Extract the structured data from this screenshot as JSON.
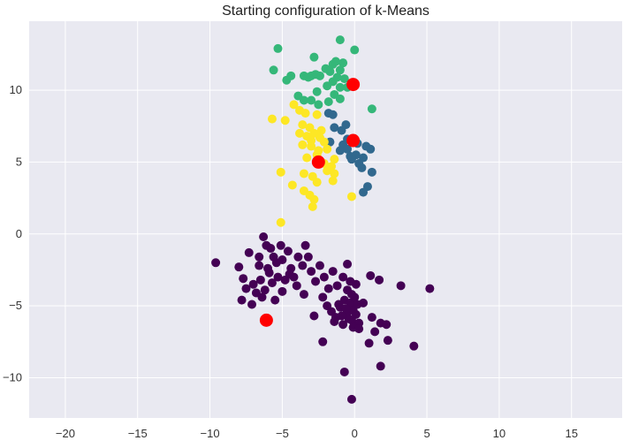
{
  "chart_data": {
    "type": "scatter",
    "title": "Starting configuration of k-Means",
    "xlabel": "",
    "ylabel": "",
    "xlim": [
      -22.5,
      18.5
    ],
    "ylim": [
      -12.8,
      14.8
    ],
    "xticks": [
      -20,
      -15,
      -10,
      -5,
      0,
      5,
      10,
      15
    ],
    "yticks": [
      -10,
      -5,
      0,
      5,
      10
    ],
    "grid": true,
    "background": "#E9E9F1",
    "grid_color": "#FFFFFF",
    "series": [
      {
        "color": "#440154",
        "points": [
          [
            -9.6,
            -2.0
          ],
          [
            -8.0,
            -2.3
          ],
          [
            -7.3,
            -1.3
          ],
          [
            -6.6,
            -1.6
          ],
          [
            -6.6,
            -2.2
          ],
          [
            -6.3,
            -0.2
          ],
          [
            -6.1,
            -0.8
          ],
          [
            -5.8,
            -1.0
          ],
          [
            -5.6,
            -1.6
          ],
          [
            -5.4,
            -2.0
          ],
          [
            -5.1,
            -0.8
          ],
          [
            -5.0,
            -1.8
          ],
          [
            -4.6,
            -1.2
          ],
          [
            -4.4,
            -2.4
          ],
          [
            -4.2,
            -3.0
          ],
          [
            -3.9,
            -1.6
          ],
          [
            -3.6,
            -2.2
          ],
          [
            -3.4,
            -0.8
          ],
          [
            -3.2,
            -1.6
          ],
          [
            -3.0,
            -2.6
          ],
          [
            -7.7,
            -3.1
          ],
          [
            -7.5,
            -3.8
          ],
          [
            -7.0,
            -3.5
          ],
          [
            -6.8,
            -4.1
          ],
          [
            -6.5,
            -3.2
          ],
          [
            -6.2,
            -3.9
          ],
          [
            -5.9,
            -2.7
          ],
          [
            -5.7,
            -3.4
          ],
          [
            -5.3,
            -3.0
          ],
          [
            -5.0,
            -4.0
          ],
          [
            -4.8,
            -3.2
          ],
          [
            -4.5,
            -2.8
          ],
          [
            -7.8,
            -4.6
          ],
          [
            -7.1,
            -4.9
          ],
          [
            -6.4,
            -4.4
          ],
          [
            -5.5,
            -4.6
          ],
          [
            -6.0,
            -2.4
          ],
          [
            -4.0,
            -3.6
          ],
          [
            -3.5,
            -4.2
          ],
          [
            -2.7,
            -3.3
          ],
          [
            -2.4,
            -2.2
          ],
          [
            -2.1,
            -3.0
          ],
          [
            -1.8,
            -3.8
          ],
          [
            -1.5,
            -2.6
          ],
          [
            -1.2,
            -3.6
          ],
          [
            -0.8,
            -3.0
          ],
          [
            -0.5,
            -2.1
          ],
          [
            -0.3,
            -3.3
          ],
          [
            -2.8,
            -5.7
          ],
          [
            -2.2,
            -4.4
          ],
          [
            -1.9,
            -5.0
          ],
          [
            -1.6,
            -5.4
          ],
          [
            -1.3,
            -5.8
          ],
          [
            -1.0,
            -5.1
          ],
          [
            -0.7,
            -4.6
          ],
          [
            -0.5,
            -5.5
          ],
          [
            -0.3,
            -4.8
          ],
          [
            -0.1,
            -5.3
          ],
          [
            0.0,
            -4.4
          ],
          [
            0.1,
            -5.6
          ],
          [
            0.2,
            -4.9
          ],
          [
            0.3,
            -6.2
          ],
          [
            -0.2,
            -6.0
          ],
          [
            -0.4,
            -5.9
          ],
          [
            -0.6,
            -5.2
          ],
          [
            -0.9,
            -5.7
          ],
          [
            -1.1,
            -4.9
          ],
          [
            -1.4,
            -6.1
          ],
          [
            -0.8,
            -6.3
          ],
          [
            -0.1,
            -6.5
          ],
          [
            0.3,
            -6.6
          ],
          [
            -0.2,
            -4.2
          ],
          [
            0.1,
            -3.5
          ],
          [
            -0.5,
            -3.9
          ],
          [
            0.6,
            -4.8
          ],
          [
            1.1,
            -2.9
          ],
          [
            1.7,
            -3.2
          ],
          [
            1.2,
            -5.8
          ],
          [
            1.4,
            -6.8
          ],
          [
            1.0,
            -7.6
          ],
          [
            1.8,
            -6.2
          ],
          [
            2.2,
            -6.3
          ],
          [
            2.3,
            -7.4
          ],
          [
            3.2,
            -3.6
          ],
          [
            4.1,
            -7.8
          ],
          [
            5.2,
            -3.8
          ],
          [
            1.8,
            -9.2
          ],
          [
            -0.7,
            -9.6
          ],
          [
            -2.2,
            -7.5
          ],
          [
            -0.2,
            -11.5
          ]
        ]
      },
      {
        "color": "#31688E",
        "points": [
          [
            -1.8,
            8.4
          ],
          [
            -1.5,
            8.3
          ],
          [
            -1.4,
            7.4
          ],
          [
            -0.9,
            7.2
          ],
          [
            -0.6,
            7.6
          ],
          [
            -0.5,
            6.6
          ],
          [
            -1.7,
            6.4
          ],
          [
            -0.8,
            6.2
          ],
          [
            -1.0,
            5.8
          ],
          [
            -0.5,
            5.9
          ],
          [
            -0.3,
            5.4
          ],
          [
            0.1,
            5.5
          ],
          [
            0.2,
            6.3
          ],
          [
            0.6,
            5.3
          ],
          [
            0.8,
            6.1
          ],
          [
            1.1,
            5.9
          ],
          [
            0.5,
            4.6
          ],
          [
            1.2,
            4.3
          ],
          [
            0.9,
            3.3
          ],
          [
            0.6,
            2.9
          ],
          [
            0.3,
            4.9
          ],
          [
            -0.2,
            5.2
          ]
        ]
      },
      {
        "color": "#35B779",
        "points": [
          [
            -5.3,
            12.9
          ],
          [
            -1.0,
            13.5
          ],
          [
            0.0,
            12.8
          ],
          [
            -5.6,
            11.4
          ],
          [
            -4.7,
            10.7
          ],
          [
            -4.4,
            11.0
          ],
          [
            -3.5,
            11.0
          ],
          [
            -3.0,
            11.0
          ],
          [
            -2.8,
            12.3
          ],
          [
            -2.4,
            11.0
          ],
          [
            -2.0,
            11.5
          ],
          [
            -1.7,
            11.3
          ],
          [
            -1.5,
            11.8
          ],
          [
            -1.3,
            12.0
          ],
          [
            -1.0,
            11.4
          ],
          [
            -0.8,
            11.9
          ],
          [
            -0.7,
            10.8
          ],
          [
            -1.9,
            10.3
          ],
          [
            -1.5,
            10.6
          ],
          [
            -1.2,
            10.9
          ],
          [
            -1.0,
            10.2
          ],
          [
            -0.5,
            10.2
          ],
          [
            -3.9,
            9.6
          ],
          [
            -3.5,
            9.3
          ],
          [
            -3.0,
            9.3
          ],
          [
            -2.6,
            9.9
          ],
          [
            -1.8,
            9.2
          ],
          [
            -1.4,
            9.7
          ],
          [
            -1.0,
            9.4
          ],
          [
            -2.5,
            9.0
          ],
          [
            1.2,
            8.7
          ],
          [
            -2.7,
            11.1
          ],
          [
            -3.2,
            10.9
          ]
        ]
      },
      {
        "color": "#FDE725",
        "points": [
          [
            -5.7,
            8.0
          ],
          [
            -4.8,
            7.9
          ],
          [
            -4.2,
            9.0
          ],
          [
            -3.8,
            8.6
          ],
          [
            -3.4,
            8.4
          ],
          [
            -2.6,
            8.3
          ],
          [
            -3.6,
            7.6
          ],
          [
            -3.1,
            7.4
          ],
          [
            -3.8,
            7.0
          ],
          [
            -3.3,
            6.8
          ],
          [
            -2.8,
            7.0
          ],
          [
            -2.3,
            7.2
          ],
          [
            -2.1,
            6.4
          ],
          [
            -3.6,
            6.2
          ],
          [
            -3.0,
            6.1
          ],
          [
            -2.5,
            5.8
          ],
          [
            -1.9,
            5.9
          ],
          [
            -3.3,
            5.3
          ],
          [
            -2.6,
            5.5
          ],
          [
            -2.1,
            4.9
          ],
          [
            -1.6,
            4.7
          ],
          [
            -1.4,
            5.2
          ],
          [
            -1.9,
            4.4
          ],
          [
            -1.4,
            4.2
          ],
          [
            -1.5,
            3.7
          ],
          [
            -3.5,
            4.2
          ],
          [
            -2.9,
            4.0
          ],
          [
            -2.6,
            3.6
          ],
          [
            -3.5,
            3.0
          ],
          [
            -3.1,
            2.7
          ],
          [
            -2.8,
            2.4
          ],
          [
            -4.3,
            3.4
          ],
          [
            -5.1,
            4.3
          ],
          [
            -2.9,
            1.9
          ],
          [
            -5.1,
            0.8
          ],
          [
            -0.2,
            2.6
          ],
          [
            -2.4,
            6.7
          ],
          [
            -3.0,
            6.5
          ]
        ]
      },
      {
        "color": "#FF0000",
        "marker": "centroid",
        "points": [
          [
            -0.1,
            10.4
          ],
          [
            -0.1,
            6.5
          ],
          [
            -2.5,
            5.0
          ],
          [
            -6.1,
            -6.0
          ]
        ]
      }
    ]
  }
}
